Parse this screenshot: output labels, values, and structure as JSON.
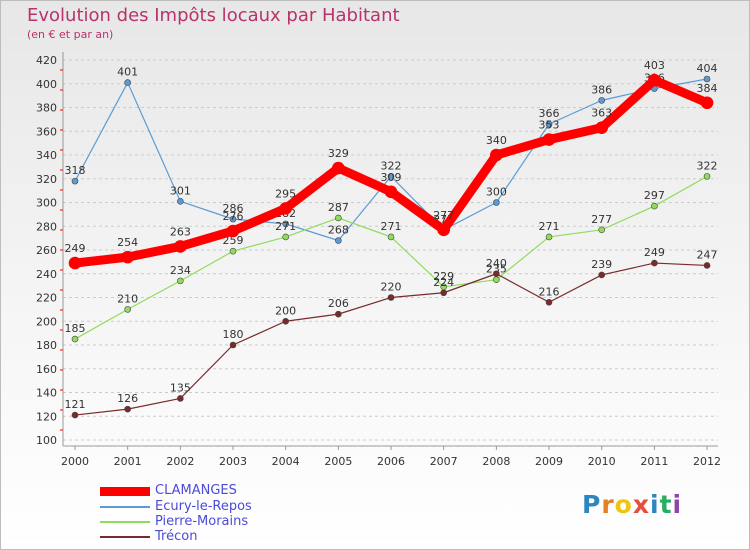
{
  "title": "Evolution des Impôts locaux par Habitant",
  "subtitle": "(en € et par an)",
  "logo": {
    "letters": [
      "P",
      "r",
      "o",
      "x",
      "i",
      "t",
      "i"
    ],
    "colors": [
      "#2e86c1",
      "#e67e22",
      "#f1c40f",
      "#e74c3c",
      "#2e86c1",
      "#27ae60",
      "#8e44ad"
    ]
  },
  "chart_data": {
    "type": "line",
    "categories": [
      "2000",
      "2001",
      "2002",
      "2003",
      "2004",
      "2005",
      "2006",
      "2007",
      "2008",
      "2009",
      "2010",
      "2011",
      "2012"
    ],
    "ylim": [
      100,
      420
    ],
    "yticks": [
      100,
      120,
      140,
      160,
      180,
      200,
      220,
      240,
      260,
      280,
      300,
      320,
      340,
      360,
      380,
      400,
      420
    ],
    "grid": true,
    "legend_position": "bottom-left",
    "series": [
      {
        "name": "Ecury-le-Repos",
        "color": "#5b9bd5",
        "width": 1.2,
        "values": [
          318,
          401,
          301,
          286,
          282,
          268,
          322,
          277,
          300,
          366,
          386,
          396,
          404
        ]
      },
      {
        "name": "Pierre-Morains",
        "color": "#8fdc5a",
        "width": 1.2,
        "values": [
          185,
          210,
          234,
          259,
          271,
          287,
          271,
          229,
          235,
          271,
          277,
          297,
          322
        ]
      },
      {
        "name": "Trécon",
        "color": "#7a2a2a",
        "width": 1.2,
        "values": [
          121,
          126,
          135,
          180,
          200,
          206,
          220,
          224,
          240,
          216,
          239,
          249,
          247
        ]
      },
      {
        "name": "CLAMANGES",
        "color": "#ff0000",
        "width": 9,
        "values": [
          249,
          254,
          263,
          276,
          295,
          329,
          309,
          277,
          340,
          353,
          363,
          403,
          384
        ]
      }
    ],
    "legend_order": [
      "CLAMANGES",
      "Ecury-le-Repos",
      "Pierre-Morains",
      "Trécon"
    ]
  }
}
